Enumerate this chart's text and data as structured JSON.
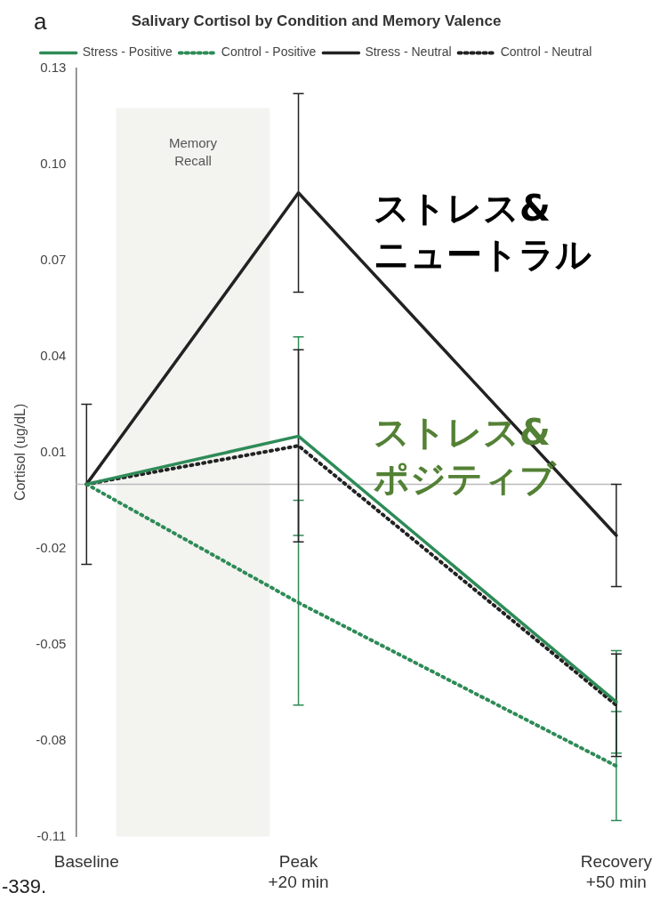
{
  "chart_data": {
    "type": "line",
    "title": "Salivary Cortisol by Condition and Memory Valence",
    "ylabel": "Cortisol (ug/dL)",
    "x": [
      0,
      20,
      50
    ],
    "xlim": [
      -1,
      50
    ],
    "xticks": [
      {
        "value": 0,
        "label": "Baseline"
      },
      {
        "value": 20,
        "label": "Peak\n+20 min"
      },
      {
        "value": 50,
        "label": "Recovery\n+50 min"
      }
    ],
    "ylim": [
      -0.11,
      0.13
    ],
    "yticks": [
      0.13,
      {
        "value": 0.1,
        "label": "0.10"
      },
      0.07,
      0.04,
      0.01,
      -0.02,
      -0.05,
      -0.08,
      -0.11
    ],
    "series": [
      {
        "name": "Stress - Positive",
        "color": "#2e8b57",
        "line_style": "solid",
        "values": [
          0,
          0.015,
          -0.068
        ],
        "errors": [
          null,
          0.031,
          0.016
        ]
      },
      {
        "name": "Control - Positive",
        "color": "#2e8b57",
        "line_style": "dotted",
        "values": [
          0,
          -0.037,
          -0.088
        ],
        "errors": [
          null,
          0.032,
          0.017
        ]
      },
      {
        "name": "Stress - Neutral",
        "color": "#222222",
        "line_style": "solid",
        "values": [
          0,
          0.091,
          -0.016
        ],
        "errors": [
          0.025,
          0.031,
          0.016
        ]
      },
      {
        "name": "Control - Neutral",
        "color": "#222222",
        "line_style": "dotted",
        "values": [
          0,
          0.012,
          -0.069
        ],
        "errors": [
          null,
          0.03,
          0.016
        ]
      }
    ],
    "bands": [
      {
        "axis": "x",
        "from": 2.8,
        "to": 17.3,
        "label": "Memory\nRecall",
        "color": "#f3f3f0"
      }
    ],
    "ref_lines": [
      {
        "axis": "y",
        "value": 0,
        "color": "#bbbbbb"
      }
    ],
    "annotations": [
      "a",
      "-339.",
      "ストレス&\nニュートラル",
      "ストレス&\nポジティブ"
    ],
    "legend": "top",
    "grid": false,
    "marker": "none"
  }
}
